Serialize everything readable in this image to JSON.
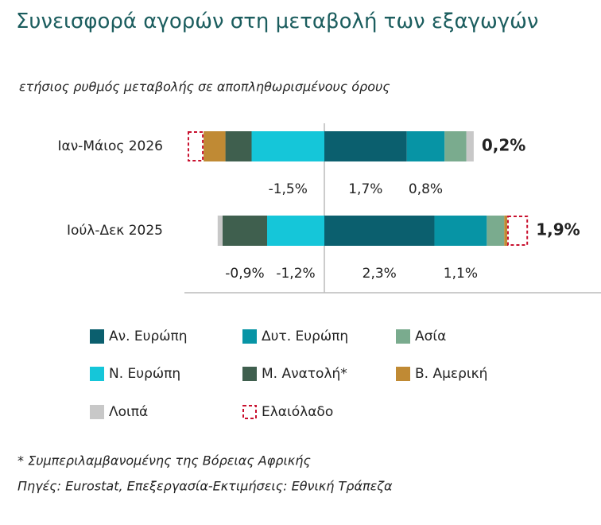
{
  "chart_data": {
    "type": "stacked-bar-horizontal",
    "title": "Συνεισφορά αγορών στη μεταβολή των εξαγωγών",
    "subtitle": "ετήσιος ρυθμός μεταβολής σε αποπληθωρισμένους όρους",
    "categories": [
      "Ιαν-Μάιος 2026",
      "Ιούλ-Δεκ 2025"
    ],
    "series": [
      {
        "name": "Αν. Ευρώπη",
        "color": "#0b5f6e",
        "values": [
          1.7,
          2.27
        ],
        "value_labels": [
          "1,7%",
          "2,3%"
        ]
      },
      {
        "name": "Δυτ. Ευρώπη",
        "color": "#0794a5",
        "values": [
          0.78,
          1.08
        ],
        "value_labels": [
          "0,8%",
          "1,1%"
        ]
      },
      {
        "name": "Ασία",
        "color": "#7aab8e",
        "values": [
          0.45,
          0.36
        ]
      },
      {
        "name": "Ν. Ευρώπη",
        "color": "#15c6d9",
        "values": [
          -1.5,
          -1.18
        ],
        "value_labels": [
          "-1,5%",
          "-1,2%"
        ]
      },
      {
        "name": "Μ. Ανατολή*",
        "color": "#3f5f4e",
        "values": [
          -0.54,
          -0.92
        ],
        "value_labels": [
          null,
          "-0,9%"
        ]
      },
      {
        "name": "Β. Αμερική",
        "color": "#c08a34",
        "values": [
          -0.45,
          0.06
        ]
      },
      {
        "name": "Λοιπά",
        "color": "#c8c8c8",
        "values": [
          0.15,
          -0.1
        ]
      },
      {
        "name": "Ελαιόλαδο",
        "color": "#c8102e",
        "style": "dashed",
        "values": [
          -0.33,
          0.43
        ]
      }
    ],
    "totals": [
      0.2,
      1.9
    ],
    "total_labels": [
      "0,2%",
      "1,9%"
    ],
    "notes": [
      "* Συμπεριλαμβανομένης της Βόρειας Αφρικής",
      "Πηγές: Eurostat, Επεξεργασία-Εκτιμήσεις: Εθνική Τράπεζα"
    ]
  }
}
